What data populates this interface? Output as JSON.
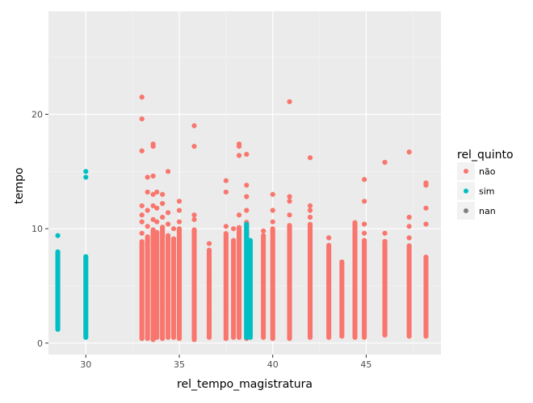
{
  "chart_data": {
    "type": "scatter",
    "title": "",
    "xlabel": "rel_tempo_magistratura",
    "ylabel": "tempo",
    "xlim": [
      28,
      49
    ],
    "ylim": [
      -1,
      29
    ],
    "xticks": [
      30,
      35,
      40,
      45
    ],
    "yticks": [
      0,
      10,
      20
    ],
    "grid": true,
    "legend": {
      "title": "rel_quinto",
      "position": "right",
      "entries": [
        {
          "label": "não",
          "color": "#F8766D"
        },
        {
          "label": "sim",
          "color": "#00BFC4"
        },
        {
          "label": "nan",
          "color": "#7F7F7F"
        }
      ]
    },
    "series": [
      {
        "name": "não",
        "color": "#F8766D",
        "columns": [
          {
            "x": 33.0,
            "ymin": 0.4,
            "ymax": 9.0,
            "outliers": [
              9.6,
              10.6,
              11.2,
              12.0,
              16.8,
              19.6,
              21.5
            ]
          },
          {
            "x": 33.3,
            "ymin": 0.4,
            "ymax": 9.4,
            "outliers": [
              10.2,
              11.6,
              13.2,
              14.5
            ]
          },
          {
            "x": 33.6,
            "ymin": 0.3,
            "ymax": 10.0,
            "outliers": [
              10.8,
              12.0,
              13.0,
              14.6,
              17.2,
              17.4
            ]
          },
          {
            "x": 33.8,
            "ymin": 0.5,
            "ymax": 9.8,
            "outliers": [
              10.6,
              11.8,
              13.2
            ]
          },
          {
            "x": 34.1,
            "ymin": 0.4,
            "ymax": 10.2,
            "outliers": [
              11.0,
              12.2,
              13.0
            ]
          },
          {
            "x": 34.4,
            "ymin": 0.5,
            "ymax": 9.4,
            "outliers": [
              10.4,
              11.4,
              15.0
            ]
          },
          {
            "x": 34.7,
            "ymin": 0.5,
            "ymax": 9.2,
            "outliers": [
              10.0
            ]
          },
          {
            "x": 35.0,
            "ymin": 0.4,
            "ymax": 10.0,
            "outliers": [
              10.6,
              11.6,
              12.4
            ]
          },
          {
            "x": 35.8,
            "ymin": 0.3,
            "ymax": 10.0,
            "outliers": [
              10.8,
              11.2,
              17.2,
              19.0
            ]
          },
          {
            "x": 36.6,
            "ymin": 0.5,
            "ymax": 8.2,
            "outliers": [
              8.7
            ]
          },
          {
            "x": 37.5,
            "ymin": 0.4,
            "ymax": 9.6,
            "outliers": [
              10.2,
              13.2,
              14.2
            ]
          },
          {
            "x": 37.9,
            "ymin": 0.5,
            "ymax": 9.0,
            "outliers": [
              10.0
            ]
          },
          {
            "x": 38.2,
            "ymin": 0.5,
            "ymax": 10.2,
            "outliers": [
              11.2,
              16.4,
              17.2,
              17.4
            ]
          },
          {
            "x": 38.6,
            "ymin": 0.4,
            "ymax": 10.6,
            "outliers": [
              11.6,
              12.8,
              13.8,
              16.5
            ]
          },
          {
            "x": 39.5,
            "ymin": 0.5,
            "ymax": 9.4,
            "outliers": [
              9.8
            ]
          },
          {
            "x": 40.0,
            "ymin": 0.4,
            "ymax": 10.0,
            "outliers": [
              10.6,
              11.6,
              13.0
            ]
          },
          {
            "x": 40.9,
            "ymin": 0.4,
            "ymax": 10.4,
            "outliers": [
              11.2,
              12.4,
              12.8,
              21.1
            ]
          },
          {
            "x": 42.0,
            "ymin": 0.5,
            "ymax": 10.4,
            "outliers": [
              11.0,
              11.6,
              12.0,
              16.2
            ]
          },
          {
            "x": 43.0,
            "ymin": 0.5,
            "ymax": 8.6,
            "outliers": [
              9.2
            ]
          },
          {
            "x": 43.7,
            "ymin": 0.6,
            "ymax": 7.2,
            "outliers": []
          },
          {
            "x": 44.4,
            "ymin": 0.5,
            "ymax": 10.6,
            "outliers": []
          },
          {
            "x": 44.9,
            "ymin": 0.5,
            "ymax": 9.0,
            "outliers": [
              9.6,
              10.4,
              12.4,
              14.3
            ]
          },
          {
            "x": 46.0,
            "ymin": 0.7,
            "ymax": 9.0,
            "outliers": [
              9.6,
              15.8
            ]
          },
          {
            "x": 47.3,
            "ymin": 0.6,
            "ymax": 8.6,
            "outliers": [
              9.2,
              10.2,
              11.0,
              16.7
            ]
          },
          {
            "x": 48.2,
            "ymin": 0.6,
            "ymax": 7.6,
            "outliers": [
              10.4,
              11.8,
              13.8,
              14.0
            ]
          }
        ]
      },
      {
        "name": "sim",
        "color": "#00BFC4",
        "columns": [
          {
            "x": 28.5,
            "ymin": 1.2,
            "ymax": 8.1,
            "outliers": [
              9.4
            ]
          },
          {
            "x": 30.0,
            "ymin": 0.5,
            "ymax": 7.6,
            "outliers": [
              14.5,
              15.0
            ]
          },
          {
            "x": 38.6,
            "ymin": 0.5,
            "ymax": 10.4,
            "outliers": []
          },
          {
            "x": 38.8,
            "ymin": 0.5,
            "ymax": 9.0,
            "outliers": []
          }
        ]
      }
    ]
  }
}
